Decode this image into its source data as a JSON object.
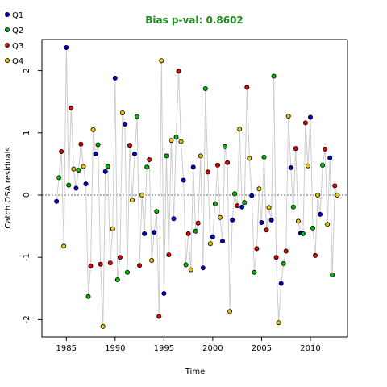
{
  "chart_data": {
    "type": "scatter",
    "title": "Bias p-val: 0.8602",
    "title_color": "#228B22",
    "xlabel": "Time",
    "ylabel": "Catch OSA residuals",
    "xlim": [
      1982.5,
      2013.8
    ],
    "ylim": [
      -2.28,
      2.5
    ],
    "xticks": [
      1985,
      1990,
      1995,
      2000,
      2005,
      2010
    ],
    "yticks": [
      -2,
      -1,
      0,
      1,
      2
    ],
    "reference_line": 0,
    "connector_color": "#cccccc",
    "legend": {
      "placement": "top-left outside",
      "entries": [
        {
          "name": "Q1",
          "color": "#0000cc"
        },
        {
          "name": "Q2",
          "color": "#00bb00"
        },
        {
          "name": "Q3",
          "color": "#dd0000"
        },
        {
          "name": "Q4",
          "color": "#e6c800"
        }
      ]
    },
    "points": [
      {
        "x": 1984.0,
        "y": -0.1,
        "q": 0
      },
      {
        "x": 1984.25,
        "y": 0.28,
        "q": 1
      },
      {
        "x": 1984.5,
        "y": 0.7,
        "q": 2
      },
      {
        "x": 1984.75,
        "y": -0.82,
        "q": 3
      },
      {
        "x": 1985.0,
        "y": 2.37,
        "q": 0
      },
      {
        "x": 1985.25,
        "y": 0.16,
        "q": 1
      },
      {
        "x": 1985.5,
        "y": 1.4,
        "q": 2
      },
      {
        "x": 1985.75,
        "y": 0.42,
        "q": 3
      },
      {
        "x": 1986.0,
        "y": 0.11,
        "q": 0
      },
      {
        "x": 1986.25,
        "y": 0.4,
        "q": 1
      },
      {
        "x": 1986.5,
        "y": 0.82,
        "q": 2
      },
      {
        "x": 1986.75,
        "y": 0.46,
        "q": 3
      },
      {
        "x": 1987.0,
        "y": 0.18,
        "q": 0
      },
      {
        "x": 1987.25,
        "y": -1.63,
        "q": 1
      },
      {
        "x": 1987.5,
        "y": -1.14,
        "q": 2
      },
      {
        "x": 1987.75,
        "y": 1.05,
        "q": 3
      },
      {
        "x": 1988.0,
        "y": 0.66,
        "q": 0
      },
      {
        "x": 1988.25,
        "y": 0.81,
        "q": 1
      },
      {
        "x": 1988.5,
        "y": -1.11,
        "q": 2
      },
      {
        "x": 1988.75,
        "y": -2.11,
        "q": 3
      },
      {
        "x": 1989.0,
        "y": 0.38,
        "q": 0
      },
      {
        "x": 1989.25,
        "y": 0.46,
        "q": 1
      },
      {
        "x": 1989.5,
        "y": -1.09,
        "q": 2
      },
      {
        "x": 1989.75,
        "y": -0.54,
        "q": 3
      },
      {
        "x": 1990.0,
        "y": 1.88,
        "q": 0
      },
      {
        "x": 1990.25,
        "y": -1.36,
        "q": 1
      },
      {
        "x": 1990.5,
        "y": -1.0,
        "q": 2
      },
      {
        "x": 1990.75,
        "y": 1.32,
        "q": 3
      },
      {
        "x": 1991.0,
        "y": 1.14,
        "q": 0
      },
      {
        "x": 1991.25,
        "y": -1.24,
        "q": 1
      },
      {
        "x": 1991.5,
        "y": 0.8,
        "q": 2
      },
      {
        "x": 1991.75,
        "y": -0.08,
        "q": 3
      },
      {
        "x": 1992.0,
        "y": 0.66,
        "q": 0
      },
      {
        "x": 1992.25,
        "y": 1.26,
        "q": 1
      },
      {
        "x": 1992.5,
        "y": -1.13,
        "q": 2
      },
      {
        "x": 1992.75,
        "y": 0.0,
        "q": 3
      },
      {
        "x": 1993.0,
        "y": -0.62,
        "q": 0
      },
      {
        "x": 1993.25,
        "y": 0.45,
        "q": 1
      },
      {
        "x": 1993.5,
        "y": 0.57,
        "q": 2
      },
      {
        "x": 1993.75,
        "y": -1.05,
        "q": 3
      },
      {
        "x": 1994.0,
        "y": -0.6,
        "q": 0
      },
      {
        "x": 1994.25,
        "y": -0.26,
        "q": 1
      },
      {
        "x": 1994.5,
        "y": -1.95,
        "q": 2
      },
      {
        "x": 1994.75,
        "y": 2.16,
        "q": 3
      },
      {
        "x": 1995.0,
        "y": -1.58,
        "q": 0
      },
      {
        "x": 1995.25,
        "y": 0.63,
        "q": 1
      },
      {
        "x": 1995.5,
        "y": -0.96,
        "q": 2
      },
      {
        "x": 1995.75,
        "y": 0.88,
        "q": 3
      },
      {
        "x": 1996.0,
        "y": -0.38,
        "q": 0
      },
      {
        "x": 1996.25,
        "y": 0.93,
        "q": 1
      },
      {
        "x": 1996.5,
        "y": 1.99,
        "q": 2
      },
      {
        "x": 1996.75,
        "y": 0.86,
        "q": 3
      },
      {
        "x": 1997.0,
        "y": 0.24,
        "q": 0
      },
      {
        "x": 1997.25,
        "y": -1.12,
        "q": 1
      },
      {
        "x": 1997.5,
        "y": -0.62,
        "q": 2
      },
      {
        "x": 1997.75,
        "y": -1.2,
        "q": 3
      },
      {
        "x": 1998.0,
        "y": 0.45,
        "q": 0
      },
      {
        "x": 1998.25,
        "y": -0.58,
        "q": 1
      },
      {
        "x": 1998.5,
        "y": -0.45,
        "q": 2
      },
      {
        "x": 1998.75,
        "y": 0.63,
        "q": 3
      },
      {
        "x": 1999.0,
        "y": -1.17,
        "q": 0
      },
      {
        "x": 1999.25,
        "y": 1.71,
        "q": 1
      },
      {
        "x": 1999.5,
        "y": 0.37,
        "q": 2
      },
      {
        "x": 1999.75,
        "y": -0.78,
        "q": 3
      },
      {
        "x": 2000.0,
        "y": -0.67,
        "q": 0
      },
      {
        "x": 2000.25,
        "y": -0.14,
        "q": 1
      },
      {
        "x": 2000.5,
        "y": 0.48,
        "q": 2
      },
      {
        "x": 2000.75,
        "y": -0.36,
        "q": 3
      },
      {
        "x": 2001.0,
        "y": -0.74,
        "q": 0
      },
      {
        "x": 2001.25,
        "y": 0.78,
        "q": 1
      },
      {
        "x": 2001.5,
        "y": 0.52,
        "q": 2
      },
      {
        "x": 2001.75,
        "y": -1.87,
        "q": 3
      },
      {
        "x": 2002.0,
        "y": -0.4,
        "q": 0
      },
      {
        "x": 2002.25,
        "y": 0.02,
        "q": 1
      },
      {
        "x": 2002.5,
        "y": -0.17,
        "q": 2
      },
      {
        "x": 2002.75,
        "y": 1.06,
        "q": 3
      },
      {
        "x": 2003.0,
        "y": -0.19,
        "q": 0
      },
      {
        "x": 2003.25,
        "y": -0.12,
        "q": 1
      },
      {
        "x": 2003.5,
        "y": 1.73,
        "q": 2
      },
      {
        "x": 2003.75,
        "y": 0.59,
        "q": 3
      },
      {
        "x": 2004.0,
        "y": -0.01,
        "q": 0
      },
      {
        "x": 2004.25,
        "y": -1.24,
        "q": 1
      },
      {
        "x": 2004.5,
        "y": -0.86,
        "q": 2
      },
      {
        "x": 2004.75,
        "y": 0.1,
        "q": 3
      },
      {
        "x": 2005.0,
        "y": -0.44,
        "q": 0
      },
      {
        "x": 2005.25,
        "y": 0.61,
        "q": 1
      },
      {
        "x": 2005.5,
        "y": -0.56,
        "q": 2
      },
      {
        "x": 2005.75,
        "y": -0.2,
        "q": 3
      },
      {
        "x": 2006.0,
        "y": -0.4,
        "q": 0
      },
      {
        "x": 2006.25,
        "y": 1.91,
        "q": 1
      },
      {
        "x": 2006.5,
        "y": -1.0,
        "q": 2
      },
      {
        "x": 2006.75,
        "y": -2.05,
        "q": 3
      },
      {
        "x": 2007.0,
        "y": -1.42,
        "q": 0
      },
      {
        "x": 2007.25,
        "y": -1.1,
        "q": 1
      },
      {
        "x": 2007.5,
        "y": -0.9,
        "q": 2
      },
      {
        "x": 2007.75,
        "y": 1.27,
        "q": 3
      },
      {
        "x": 2008.0,
        "y": 0.44,
        "q": 0
      },
      {
        "x": 2008.25,
        "y": -0.19,
        "q": 1
      },
      {
        "x": 2008.5,
        "y": 0.75,
        "q": 2
      },
      {
        "x": 2008.75,
        "y": -0.42,
        "q": 3
      },
      {
        "x": 2009.0,
        "y": -0.61,
        "q": 0
      },
      {
        "x": 2009.25,
        "y": -0.62,
        "q": 1
      },
      {
        "x": 2009.5,
        "y": 1.16,
        "q": 2
      },
      {
        "x": 2009.75,
        "y": 0.47,
        "q": 3
      },
      {
        "x": 2010.0,
        "y": 1.25,
        "q": 0
      },
      {
        "x": 2010.25,
        "y": -0.53,
        "q": 1
      },
      {
        "x": 2010.5,
        "y": -0.97,
        "q": 2
      },
      {
        "x": 2010.75,
        "y": 0.0,
        "q": 3
      },
      {
        "x": 2011.0,
        "y": -0.31,
        "q": 0
      },
      {
        "x": 2011.25,
        "y": 0.48,
        "q": 1
      },
      {
        "x": 2011.5,
        "y": 0.74,
        "q": 2
      },
      {
        "x": 2011.75,
        "y": -0.47,
        "q": 3
      },
      {
        "x": 2012.0,
        "y": 0.6,
        "q": 0
      },
      {
        "x": 2012.25,
        "y": -1.28,
        "q": 1
      },
      {
        "x": 2012.5,
        "y": 0.15,
        "q": 2
      },
      {
        "x": 2012.75,
        "y": 0.0,
        "q": 3
      }
    ]
  }
}
